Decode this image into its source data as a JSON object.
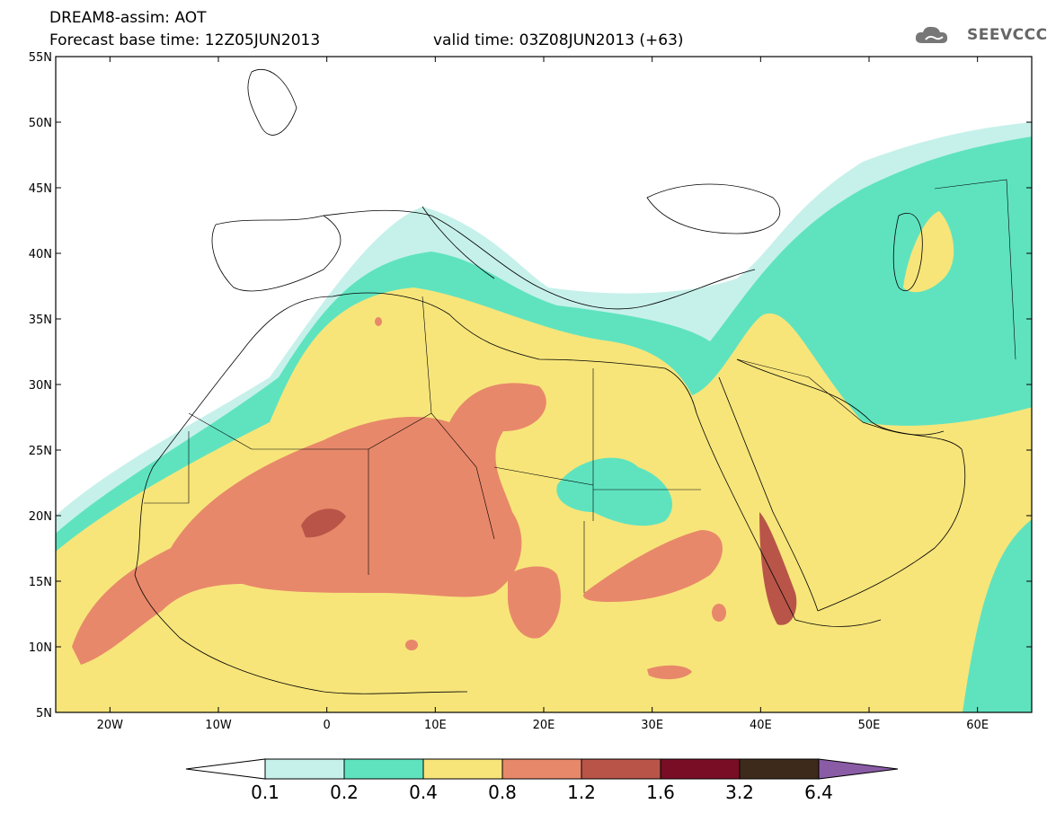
{
  "header": {
    "line1": "DREAM8-assim: AOT",
    "line2": "Forecast base time: 12Z05JUN2013",
    "line3": "valid time: 03Z08JUN2013 (+63)"
  },
  "logo": {
    "text": "SEEVCCC",
    "icon": "cloud-logo-icon"
  },
  "map": {
    "lon_range": [
      -25,
      65
    ],
    "lat_range": [
      5,
      55
    ],
    "lat_ticks": [
      "5N",
      "10N",
      "15N",
      "20N",
      "25N",
      "30N",
      "35N",
      "40N",
      "45N",
      "50N",
      "55N"
    ],
    "lon_ticks": [
      "20W",
      "10W",
      "0",
      "10E",
      "20E",
      "30E",
      "40E",
      "50E",
      "60E"
    ],
    "field": "Aerosol optical thickness (AOT)"
  },
  "colorbar": {
    "labels": [
      "0.1",
      "0.2",
      "0.4",
      "0.8",
      "1.2",
      "1.6",
      "3.2",
      "6.4"
    ],
    "colors": [
      "#ffffff",
      "#c6f1ea",
      "#5fe3bf",
      "#f7e57a",
      "#e8886a",
      "#b85548",
      "#7a0d26",
      "#3d2a1a",
      "#8a5ca6"
    ]
  }
}
